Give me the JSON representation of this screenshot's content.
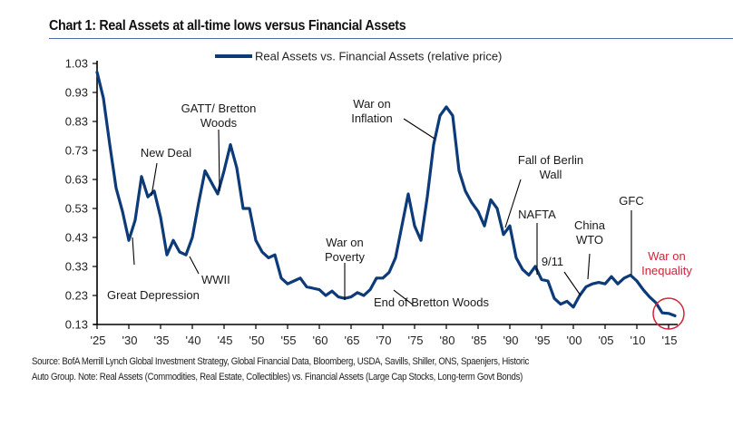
{
  "page": {
    "title": "Chart 1:  Real Assets at all-time lows versus Financial Assets",
    "footnote_line1": "Source:  BofA Merrill Lynch Global Investment Strategy, Global Financial Data, Bloomberg, USDA, Savills, Shiller, ONS, Spaenjers, Historic",
    "footnote_line2": "Auto Group. Note:  Real Assets (Commodities, Real Estate, Collectibles) vs. Financial Assets (Large Cap Stocks, Long-term Govt Bonds)"
  },
  "colors": {
    "series": "#0d3a78",
    "highlight": "#d0243a",
    "text": "#222222"
  },
  "chart_data": {
    "type": "line",
    "title": "Real Assets at all-time lows versus Financial Assets",
    "xlabel": "",
    "ylabel": "",
    "xlim": [
      1925,
      2016
    ],
    "ylim": [
      0.13,
      1.03
    ],
    "grid": false,
    "legend_position": "top-center",
    "yticks": [
      1.03,
      0.93,
      0.83,
      0.73,
      0.63,
      0.53,
      0.43,
      0.33,
      0.23,
      0.13
    ],
    "ytick_labels": [
      "1.03",
      "0.93",
      "0.83",
      "0.73",
      "0.63",
      "0.53",
      "0.43",
      "0.33",
      "0.23",
      "0.13"
    ],
    "xticks": [
      1925,
      1930,
      1935,
      1940,
      1945,
      1950,
      1955,
      1960,
      1965,
      1970,
      1975,
      1980,
      1985,
      1990,
      1995,
      2000,
      2005,
      2010,
      2015
    ],
    "xtick_labels": [
      "'25",
      "'30",
      "'35",
      "'40",
      "'45",
      "'50",
      "'55",
      "'60",
      "'65",
      "'70",
      "'75",
      "'80",
      "'85",
      "'90",
      "'95",
      "'00",
      "'05",
      "'10",
      "'15"
    ],
    "series": [
      {
        "name": "Real Assets vs. Financial Assets (relative price)",
        "x": [
          1925,
          1926,
          1927,
          1928,
          1929,
          1930,
          1931,
          1932,
          1933,
          1934,
          1935,
          1936,
          1937,
          1938,
          1939,
          1940,
          1941,
          1942,
          1943,
          1944,
          1945,
          1946,
          1947,
          1948,
          1949,
          1950,
          1951,
          1952,
          1953,
          1954,
          1955,
          1956,
          1957,
          1958,
          1959,
          1960,
          1961,
          1962,
          1963,
          1964,
          1965,
          1966,
          1967,
          1968,
          1969,
          1970,
          1971,
          1972,
          1973,
          1974,
          1975,
          1976,
          1977,
          1978,
          1979,
          1980,
          1981,
          1982,
          1983,
          1984,
          1985,
          1986,
          1987,
          1988,
          1989,
          1990,
          1991,
          1992,
          1993,
          1994,
          1995,
          1996,
          1997,
          1998,
          1999,
          2000,
          2001,
          2002,
          2003,
          2004,
          2005,
          2006,
          2007,
          2008,
          2009,
          2010,
          2011,
          2012,
          2013,
          2014,
          2015,
          2016
        ],
        "values": [
          1.0,
          0.91,
          0.75,
          0.6,
          0.52,
          0.42,
          0.49,
          0.64,
          0.57,
          0.59,
          0.5,
          0.37,
          0.42,
          0.38,
          0.37,
          0.43,
          0.55,
          0.66,
          0.62,
          0.58,
          0.66,
          0.75,
          0.67,
          0.53,
          0.53,
          0.42,
          0.38,
          0.36,
          0.37,
          0.29,
          0.27,
          0.28,
          0.29,
          0.26,
          0.255,
          0.25,
          0.23,
          0.245,
          0.225,
          0.22,
          0.225,
          0.24,
          0.23,
          0.25,
          0.29,
          0.29,
          0.31,
          0.36,
          0.47,
          0.58,
          0.47,
          0.42,
          0.57,
          0.75,
          0.85,
          0.88,
          0.85,
          0.66,
          0.59,
          0.55,
          0.52,
          0.47,
          0.56,
          0.53,
          0.44,
          0.47,
          0.36,
          0.32,
          0.3,
          0.33,
          0.285,
          0.28,
          0.22,
          0.2,
          0.21,
          0.19,
          0.23,
          0.26,
          0.27,
          0.275,
          0.27,
          0.295,
          0.27,
          0.29,
          0.3,
          0.28,
          0.25,
          0.225,
          0.205,
          0.17,
          0.168,
          0.16
        ]
      }
    ],
    "annotations": [
      {
        "id": "great-depression",
        "lines": [
          "Great Depression"
        ],
        "year": 1930.5,
        "color": "black"
      },
      {
        "id": "new-deal",
        "lines": [
          "New Deal"
        ],
        "year": 1933.3,
        "color": "black"
      },
      {
        "id": "wwii",
        "lines": [
          "WWII"
        ],
        "year": 1939.5,
        "color": "black"
      },
      {
        "id": "gatt-bretton-woods",
        "lines": [
          "GATT/ Bretton",
          "Woods"
        ],
        "year": 1944,
        "color": "black"
      },
      {
        "id": "war-on-poverty",
        "lines": [
          "War on",
          "Poverty"
        ],
        "year": 1964,
        "color": "black"
      },
      {
        "id": "end-of-bretton-woods",
        "lines": [
          "End of Bretton Woods"
        ],
        "year": 1971.5,
        "color": "black"
      },
      {
        "id": "war-on-inflation",
        "lines": [
          "War on",
          "Inflation"
        ],
        "year": 1978.3,
        "color": "black"
      },
      {
        "id": "fall-of-berlin-wall",
        "lines": [
          "Fall of Berlin",
          "Wall"
        ],
        "year": 1989.5,
        "color": "black"
      },
      {
        "id": "nafta",
        "lines": [
          "NAFTA"
        ],
        "year": 1994,
        "color": "black"
      },
      {
        "id": "9-11",
        "lines": [
          "9/11"
        ],
        "year": 2001,
        "color": "black"
      },
      {
        "id": "china-wto",
        "lines": [
          "China",
          "WTO"
        ],
        "year": 2002.5,
        "color": "black"
      },
      {
        "id": "gfc",
        "lines": [
          "GFC"
        ],
        "year": 2009,
        "color": "black"
      },
      {
        "id": "war-on-inequality",
        "lines": [
          "War on",
          "Inequality"
        ],
        "year": 2015,
        "color": "red",
        "circled": true
      }
    ]
  }
}
